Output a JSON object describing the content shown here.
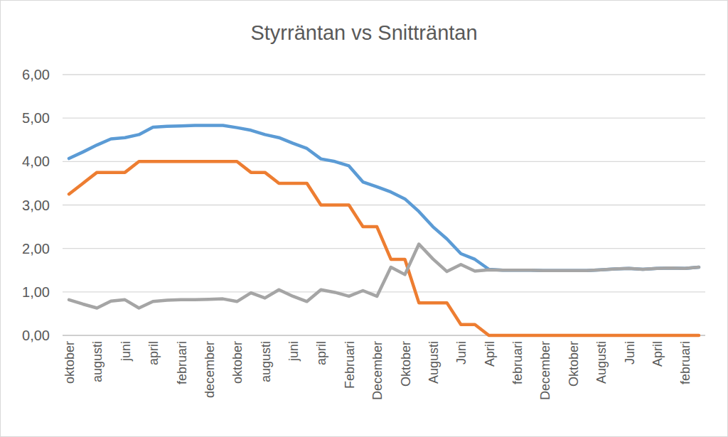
{
  "chart_data": {
    "type": "line",
    "title": "Styrräntan vs Snitträntan",
    "categories": [
      "oktober",
      null,
      "augusti",
      null,
      "juni",
      null,
      "april",
      null,
      "februari",
      null,
      "december",
      null,
      "oktober",
      null,
      "augusti",
      null,
      "juni",
      null,
      "april",
      null,
      "Februari",
      null,
      "December",
      null,
      "Oktober",
      null,
      "Augusti",
      null,
      "Juni",
      null,
      "April",
      null,
      "februari",
      null,
      "December",
      null,
      "Oktober",
      null,
      "Augusti",
      null,
      "Juni",
      null,
      "April",
      null,
      "februari",
      null
    ],
    "series": [
      {
        "color": "#5b9bd5",
        "values": [
          4.07,
          4.22,
          4.38,
          4.52,
          4.55,
          4.62,
          4.79,
          4.81,
          4.82,
          4.83,
          4.83,
          4.83,
          4.78,
          4.72,
          4.62,
          4.55,
          4.42,
          4.3,
          4.06,
          4.0,
          3.9,
          3.53,
          3.42,
          3.3,
          3.14,
          2.85,
          2.5,
          2.22,
          1.88,
          1.75,
          1.52,
          1.5,
          1.5,
          1.5,
          1.49,
          1.49,
          1.49,
          1.49,
          1.51,
          1.53,
          1.54,
          1.52,
          1.54,
          1.55,
          1.54,
          1.57
        ]
      },
      {
        "color": "#ed7d31",
        "values": [
          3.25,
          3.5,
          3.75,
          3.75,
          3.75,
          4.0,
          4.0,
          4.0,
          4.0,
          4.0,
          4.0,
          4.0,
          4.0,
          3.75,
          3.75,
          3.5,
          3.5,
          3.5,
          3.0,
          3.0,
          3.0,
          2.5,
          2.5,
          1.75,
          1.75,
          0.75,
          0.75,
          0.75,
          0.25,
          0.25,
          0.0,
          0.0,
          0.0,
          0.0,
          0.0,
          0.0,
          0.0,
          0.0,
          0.0,
          0.0,
          0.0,
          0.0,
          0.0,
          0.0,
          0.0,
          0.0
        ]
      },
      {
        "color": "#a5a5a5",
        "values": [
          0.82,
          0.72,
          0.63,
          0.79,
          0.82,
          0.63,
          0.78,
          0.81,
          0.82,
          0.82,
          0.83,
          0.84,
          0.78,
          0.98,
          0.86,
          1.05,
          0.9,
          0.78,
          1.05,
          0.99,
          0.9,
          1.03,
          0.9,
          1.57,
          1.4,
          2.1,
          1.76,
          1.47,
          1.63,
          1.48,
          1.51,
          1.5,
          1.5,
          1.5,
          1.49,
          1.49,
          1.49,
          1.49,
          1.51,
          1.53,
          1.54,
          1.52,
          1.54,
          1.55,
          1.54,
          1.57
        ]
      }
    ],
    "ylim": [
      0,
      6
    ],
    "yticks": [
      {
        "value": 0,
        "label": "0,00"
      },
      {
        "value": 1,
        "label": "1,00"
      },
      {
        "value": 2,
        "label": "2,00"
      },
      {
        "value": 3,
        "label": "3,00"
      },
      {
        "value": 4,
        "label": "4,00"
      },
      {
        "value": 5,
        "label": "5,00"
      },
      {
        "value": 6,
        "label": "6,00"
      }
    ],
    "grid": true
  }
}
